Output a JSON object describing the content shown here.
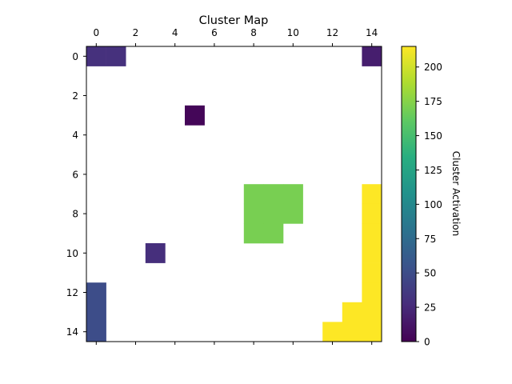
{
  "chart_data": {
    "type": "heatmap",
    "title": "Cluster Map",
    "xlabel": "",
    "ylabel": "",
    "x_ticks": [
      "0",
      "2",
      "4",
      "6",
      "8",
      "10",
      "12",
      "14"
    ],
    "y_ticks": [
      "0",
      "2",
      "4",
      "6",
      "8",
      "10",
      "12",
      "14"
    ],
    "x_range": [
      0,
      14
    ],
    "y_range": [
      0,
      14
    ],
    "x_axis_position": "top",
    "grid": false,
    "nan_color": "#ffffff",
    "colormap": "viridis",
    "colorbar": {
      "label": "Cluster Activation",
      "range": [
        0,
        215
      ],
      "ticks": [
        "0",
        "25",
        "50",
        "75",
        "100",
        "125",
        "150",
        "175",
        "200"
      ]
    },
    "cells": [
      {
        "row": 0,
        "col": 0,
        "value": 30
      },
      {
        "row": 0,
        "col": 1,
        "value": 30
      },
      {
        "row": 0,
        "col": 14,
        "value": 18
      },
      {
        "row": 3,
        "col": 5,
        "value": 3
      },
      {
        "row": 7,
        "col": 8,
        "value": 170
      },
      {
        "row": 7,
        "col": 9,
        "value": 170
      },
      {
        "row": 7,
        "col": 10,
        "value": 170
      },
      {
        "row": 8,
        "col": 8,
        "value": 170
      },
      {
        "row": 8,
        "col": 9,
        "value": 170
      },
      {
        "row": 8,
        "col": 10,
        "value": 170
      },
      {
        "row": 9,
        "col": 8,
        "value": 170
      },
      {
        "row": 9,
        "col": 9,
        "value": 170
      },
      {
        "row": 10,
        "col": 3,
        "value": 28
      },
      {
        "row": 12,
        "col": 0,
        "value": 50
      },
      {
        "row": 13,
        "col": 0,
        "value": 50
      },
      {
        "row": 14,
        "col": 0,
        "value": 50
      },
      {
        "row": 7,
        "col": 14,
        "value": 215
      },
      {
        "row": 8,
        "col": 14,
        "value": 215
      },
      {
        "row": 9,
        "col": 14,
        "value": 215
      },
      {
        "row": 10,
        "col": 14,
        "value": 215
      },
      {
        "row": 11,
        "col": 14,
        "value": 215
      },
      {
        "row": 12,
        "col": 14,
        "value": 215
      },
      {
        "row": 13,
        "col": 13,
        "value": 215
      },
      {
        "row": 13,
        "col": 14,
        "value": 215
      },
      {
        "row": 14,
        "col": 12,
        "value": 215
      },
      {
        "row": 14,
        "col": 13,
        "value": 215
      },
      {
        "row": 14,
        "col": 14,
        "value": 215
      }
    ]
  }
}
